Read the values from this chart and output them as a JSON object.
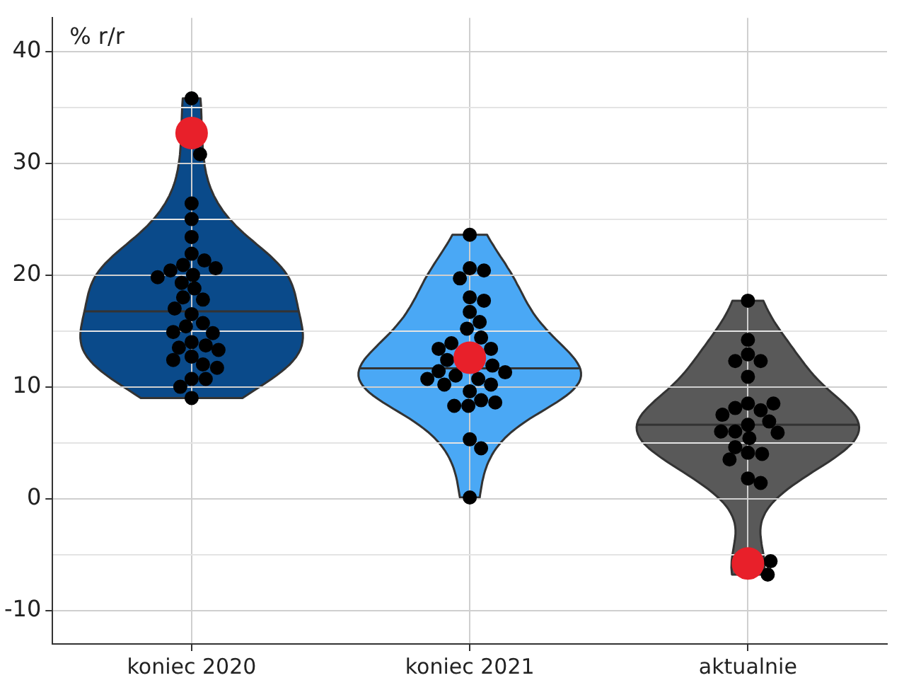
{
  "chart_data": {
    "type": "scatter",
    "annotations": [
      "% r/r"
    ],
    "categories": [
      "koniec 2020",
      "koniec 2021",
      "aktualnie"
    ],
    "ylim": [
      -13,
      43
    ],
    "yticks": [
      -10,
      {
        "value": -5,
        "label": null
      },
      0,
      {
        "value": 5,
        "label": null
      },
      10,
      {
        "value": 15,
        "label": null
      },
      20,
      {
        "value": 25,
        "label": null
      },
      30,
      {
        "value": 35,
        "label": null
      },
      40
    ],
    "grid": true,
    "legend": false,
    "marker": "circle",
    "colors": [
      "#0a4a8a",
      "#4aa8f5",
      "#595959"
    ],
    "series": [
      {
        "color": "#000000",
        "x": [
          "koniec 2020",
          "koniec 2020",
          "koniec 2020",
          "koniec 2020",
          "koniec 2020",
          "koniec 2020",
          "koniec 2020",
          "koniec 2020",
          "koniec 2020",
          "koniec 2020",
          "koniec 2020",
          "koniec 2020",
          "koniec 2020",
          "koniec 2020",
          "koniec 2020",
          "koniec 2020",
          "koniec 2020",
          "koniec 2020",
          "koniec 2020",
          "koniec 2020",
          "koniec 2020",
          "koniec 2020",
          "koniec 2020",
          "koniec 2020",
          "koniec 2020",
          "koniec 2020",
          "koniec 2020",
          "koniec 2020",
          "koniec 2020",
          "koniec 2020",
          "koniec 2020",
          "koniec 2020",
          "koniec 2020",
          "koniec 2020"
        ],
        "values": [
          35.8,
          30.8,
          26.4,
          25.0,
          23.4,
          21.9,
          21.3,
          20.9,
          20.4,
          20.6,
          20.0,
          19.8,
          19.3,
          18.8,
          18.0,
          17.8,
          16.5,
          15.7,
          17.0,
          15.4,
          14.9,
          14.8,
          14.0,
          13.7,
          13.5,
          13.3,
          12.7,
          12.0,
          12.4,
          11.7,
          10.7,
          10.7,
          10.0,
          9.0
        ]
      },
      {
        "color": "#000000",
        "x": [
          "koniec 2021",
          "koniec 2021",
          "koniec 2021",
          "koniec 2021",
          "koniec 2021",
          "koniec 2021",
          "koniec 2021",
          "koniec 2021",
          "koniec 2021",
          "koniec 2021",
          "koniec 2021",
          "koniec 2021",
          "koniec 2021",
          "koniec 2021",
          "koniec 2021",
          "koniec 2021",
          "koniec 2021",
          "koniec 2021",
          "koniec 2021",
          "koniec 2021",
          "koniec 2021",
          "koniec 2021",
          "koniec 2021",
          "koniec 2021",
          "koniec 2021",
          "koniec 2021",
          "koniec 2021",
          "koniec 2021",
          "koniec 2021",
          "koniec 2021"
        ],
        "values": [
          23.6,
          20.6,
          20.4,
          19.7,
          18.0,
          17.7,
          16.7,
          15.8,
          15.2,
          14.4,
          13.9,
          13.4,
          13.4,
          12.4,
          11.9,
          11.4,
          11.0,
          11.3,
          10.7,
          10.7,
          10.2,
          10.2,
          9.6,
          8.8,
          8.3,
          8.3,
          8.6,
          5.3,
          4.5,
          0.1
        ]
      },
      {
        "color": "#000000",
        "x": [
          "aktualnie",
          "aktualnie",
          "aktualnie",
          "aktualnie",
          "aktualnie",
          "aktualnie",
          "aktualnie",
          "aktualnie",
          "aktualnie",
          "aktualnie",
          "aktualnie",
          "aktualnie",
          "aktualnie",
          "aktualnie",
          "aktualnie",
          "aktualnie",
          "aktualnie",
          "aktualnie",
          "aktualnie",
          "aktualnie",
          "aktualnie",
          "aktualnie",
          "aktualnie",
          "aktualnie",
          "aktualnie"
        ],
        "values": [
          17.7,
          14.2,
          12.9,
          12.3,
          12.3,
          10.9,
          8.5,
          7.9,
          8.1,
          8.5,
          7.5,
          6.6,
          6.9,
          5.4,
          6.0,
          6.0,
          5.9,
          4.1,
          4.0,
          4.6,
          3.5,
          1.8,
          1.4,
          -5.6,
          -6.8
        ]
      },
      {
        "color": "#e8202a",
        "x": [
          "koniec 2020",
          "koniec 2021",
          "aktualnie"
        ],
        "values": [
          32.7,
          12.6,
          -5.8
        ]
      }
    ]
  }
}
